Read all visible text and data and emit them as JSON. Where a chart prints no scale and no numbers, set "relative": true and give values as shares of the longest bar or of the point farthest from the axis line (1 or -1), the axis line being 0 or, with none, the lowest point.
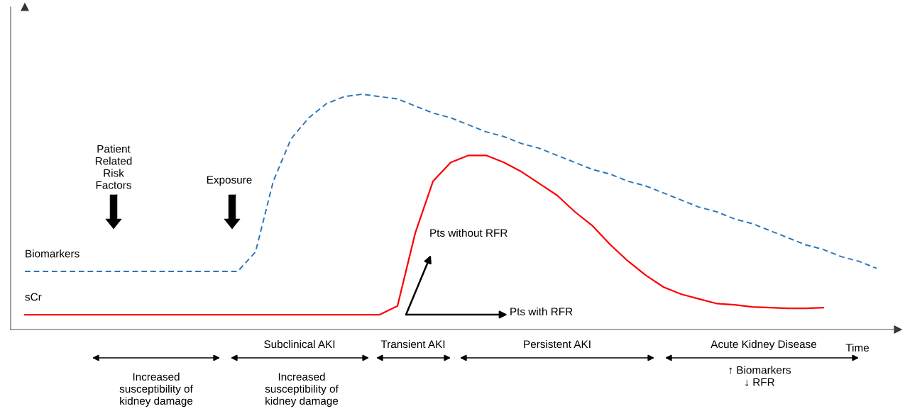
{
  "chart_data": {
    "type": "line",
    "relative": true,
    "tick_labels": false,
    "xlabel": "Time",
    "categories": [
      null,
      null,
      null,
      null,
      null,
      null,
      null,
      null,
      null,
      null,
      null,
      null,
      null,
      null,
      null,
      null,
      null,
      null,
      null,
      null,
      null,
      null,
      null,
      null,
      null,
      null,
      null,
      null,
      null,
      null,
      null,
      null,
      null,
      null,
      null,
      null,
      null,
      null,
      null,
      null,
      null,
      null,
      null,
      null,
      null,
      null,
      null,
      null,
      null
    ],
    "series": [
      {
        "name": "Biomarkers",
        "color": "#2e75b6",
        "line_style": "dashed",
        "values": [
          0.247,
          0.247,
          0.247,
          0.247,
          0.247,
          0.247,
          0.247,
          0.247,
          0.247,
          0.247,
          0.247,
          0.247,
          0.247,
          0.33,
          0.63,
          0.81,
          0.9,
          0.96,
          0.99,
          1.0,
          0.99,
          0.98,
          0.95,
          0.92,
          0.9,
          0.87,
          0.84,
          0.82,
          0.79,
          0.77,
          0.74,
          0.71,
          0.68,
          0.66,
          0.63,
          0.61,
          0.58,
          0.55,
          0.52,
          0.5,
          0.47,
          0.45,
          0.42,
          0.39,
          0.36,
          0.34,
          0.31,
          0.29,
          0.26
        ]
      },
      {
        "name": "sCr",
        "color": "#ff0000",
        "line_style": "solid",
        "values": [
          0.063,
          0.063,
          0.063,
          0.063,
          0.063,
          0.063,
          0.063,
          0.063,
          0.063,
          0.063,
          0.063,
          0.063,
          0.063,
          0.063,
          0.063,
          0.063,
          0.063,
          0.063,
          0.063,
          0.063,
          0.063,
          0.1,
          0.41,
          0.63,
          0.71,
          0.74,
          0.74,
          0.71,
          0.67,
          0.62,
          0.57,
          0.5,
          0.44,
          0.36,
          0.29,
          0.23,
          0.18,
          0.15,
          0.13,
          0.11,
          0.105,
          0.096,
          0.093,
          0.09,
          0.09,
          0.093,
          null,
          null,
          null
        ]
      }
    ],
    "annotations": [
      "Patient\nRelated\nRisk\nFactors",
      "Exposure",
      "Pts without RFR",
      "Pts with RFR",
      "Subclinical AKI",
      "Transient AKI",
      "Persistent AKI",
      "Acute Kidney Disease",
      "Increased\nsusceptibility of\nkidney damage",
      "Increased\nsusceptibility of\nkidney damage",
      "↑ Biomarkers\n↓ RFR"
    ]
  }
}
